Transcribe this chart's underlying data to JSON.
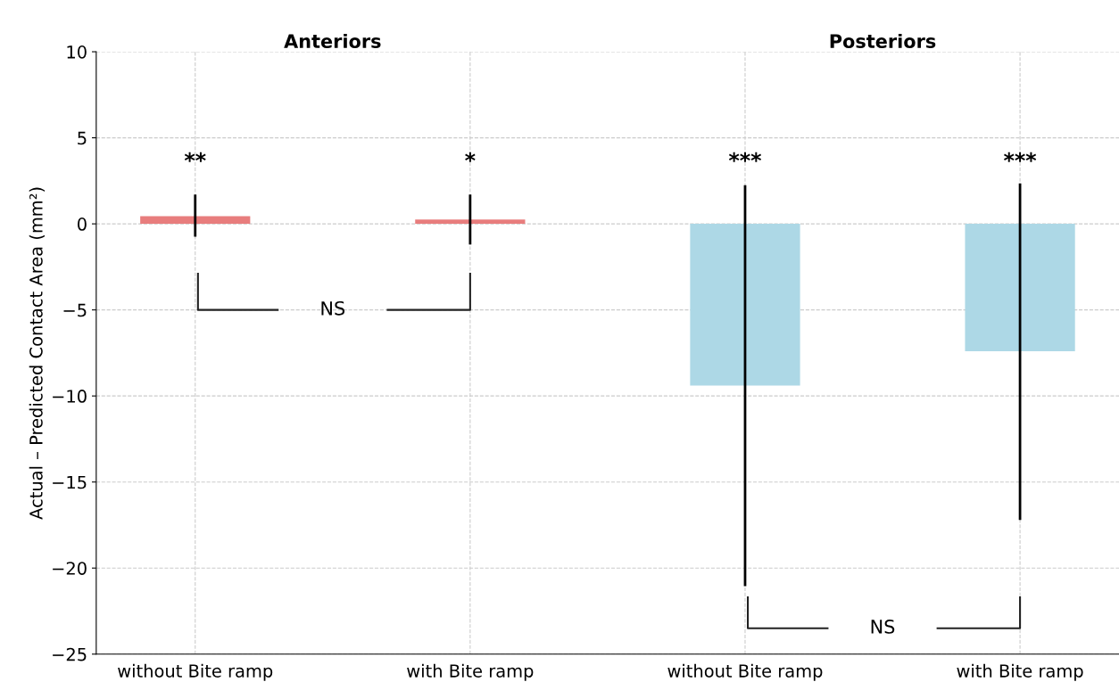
{
  "chart_data": {
    "type": "bar",
    "ylabel": "Actual – Predicted Contact Area (mm²)",
    "categories": [
      "without Bite ramp",
      "with Bite ramp",
      "without Bite ramp",
      "with Bite ramp"
    ],
    "values": [
      0.45,
      0.25,
      -9.4,
      -7.4
    ],
    "colors": [
      "#e87d7d",
      "#e87d7d",
      "#add8e6",
      "#add8e6"
    ],
    "errors": [
      [
        -0.75,
        1.7
      ],
      [
        -1.2,
        1.7
      ],
      [
        -21.05,
        2.25
      ],
      [
        -17.2,
        2.35
      ]
    ],
    "ylim": [
      -25,
      10
    ],
    "yticks": [
      {
        "value": -25,
        "label": "−25"
      },
      {
        "value": -20,
        "label": "−20"
      },
      {
        "value": -15,
        "label": "−15"
      },
      {
        "value": -10,
        "label": "−10"
      },
      {
        "value": -5,
        "label": "−5"
      },
      0,
      5,
      10
    ],
    "grid": true,
    "annotations": [
      "Anteriors",
      "Posteriors",
      "**",
      "*",
      "***",
      "***",
      "NS",
      "NS"
    ]
  }
}
